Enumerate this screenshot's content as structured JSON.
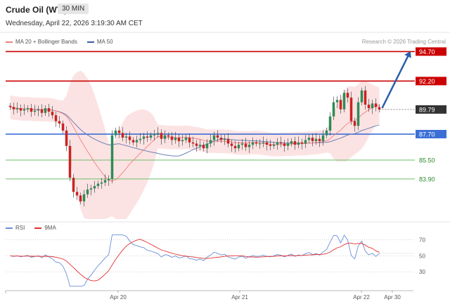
{
  "header": {
    "instrument": "Crude Oil (WTI)",
    "timeframe": "30 MIN",
    "datetime": "Wednesday, April 22, 2026 3:19:30 AM CET",
    "watermark": "Research © 2026 Trading Central"
  },
  "legend_main": {
    "bb_label": "MA 20 + Bollinger Bands",
    "ma50_label": "MA 50"
  },
  "legend_rsi": {
    "rsi_label": "RSI",
    "ma_label": "9MA"
  },
  "colors": {
    "resistance": "#cc0000",
    "support": "#3b6fd6",
    "target_line": "#6abf69",
    "bb_band": "#fbd9d9",
    "ma20": "#f08080",
    "ma50": "#6a7fb5",
    "candle_up": "#2e8b57",
    "candle_down": "#cc2222",
    "arrow": "#2b5fa8",
    "rsi": "#6a8fd8",
    "rsi_ma": "#e23030"
  },
  "chart_data": [
    {
      "type": "candlestick",
      "title": "Crude Oil (WTI)",
      "ylim": [
        80.5,
        95.5
      ],
      "x_ticks": [
        "Apr 20",
        "Apr 21",
        "Apr 22",
        "Apr 30"
      ],
      "levels": [
        {
          "label": "94.70",
          "value": 94.7,
          "kind": "resistance"
        },
        {
          "label": "92.20",
          "value": 92.2,
          "kind": "resistance"
        },
        {
          "label": "89.79",
          "value": 89.79,
          "kind": "current"
        },
        {
          "label": "87.70",
          "value": 87.7,
          "kind": "support"
        },
        {
          "label": "85.50",
          "value": 85.5,
          "kind": "target"
        },
        {
          "label": "83.90",
          "value": 83.9,
          "kind": "target"
        }
      ],
      "projection": {
        "from": 89.79,
        "to": 94.7
      },
      "closes": [
        90.0,
        89.8,
        89.9,
        89.7,
        89.8,
        89.9,
        89.6,
        89.7,
        89.8,
        89.5,
        89.9,
        89.6,
        89.3,
        88.8,
        88.6,
        88.0,
        86.7,
        84.0,
        82.8,
        82.5,
        82.0,
        82.6,
        83.0,
        83.1,
        83.3,
        83.5,
        83.6,
        83.8,
        83.9,
        87.6,
        88.0,
        87.8,
        87.4,
        87.5,
        87.2,
        87.0,
        87.2,
        87.3,
        87.5,
        87.4,
        87.6,
        87.7,
        87.8,
        87.3,
        87.6,
        87.5,
        87.2,
        87.4,
        87.1,
        87.2,
        87.4,
        87.0,
        86.9,
        86.7,
        86.8,
        86.5,
        86.9,
        87.2,
        87.6,
        87.4,
        87.2,
        87.3,
        86.9,
        86.7,
        86.5,
        86.8,
        86.9,
        86.6,
        86.8,
        87.0,
        86.9,
        86.9,
        87.0,
        86.8,
        86.7,
        86.8,
        87.0,
        86.9,
        86.7,
        86.9,
        87.1,
        86.8,
        87.0,
        86.9,
        87.2,
        87.4,
        87.1,
        87.3,
        87.1,
        87.6,
        88.0,
        89.2,
        90.4,
        90.6,
        89.8,
        91.2,
        90.8,
        88.8,
        88.4,
        90.4,
        91.4,
        90.2,
        89.9,
        90.3,
        90.0,
        89.79
      ],
      "rsi": {
        "ylim": [
          10,
          80
        ],
        "ticks": [
          30,
          50,
          70
        ],
        "current": 53
      }
    }
  ]
}
